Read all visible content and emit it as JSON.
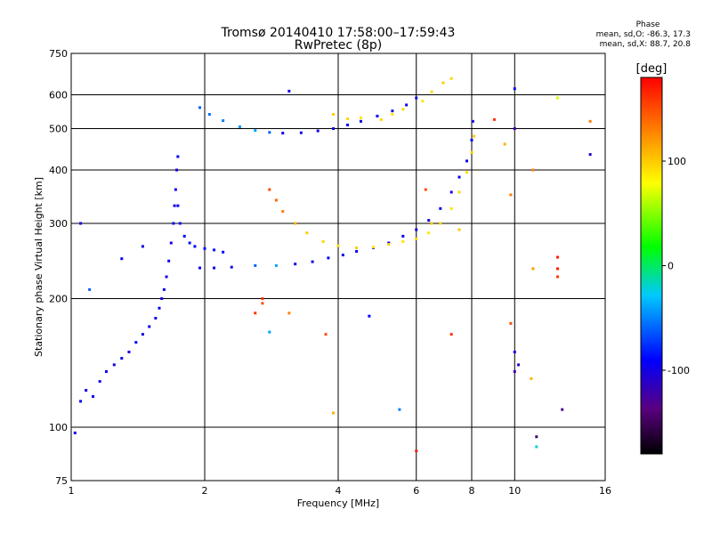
{
  "header": {
    "title_line1": "Tromsø 20140410 17:58:00–17:59:43",
    "title_line2": "RwPretec (8p)"
  },
  "phase_info": {
    "title": "Phase",
    "line_o": "mean, sd,O: -86.3, 17.3",
    "line_x": "mean, sd,X:  88.7, 20.8"
  },
  "colorbar": {
    "unit_label": "[deg]",
    "ticks": [
      {
        "label": "100",
        "value": 100
      },
      {
        "label": "0",
        "value": 0
      },
      {
        "label": "-100",
        "value": -100
      }
    ],
    "range": [
      -180,
      180
    ],
    "colors": [
      "#000000",
      "#5a0080",
      "#0000ff",
      "#00c8ff",
      "#00ff00",
      "#ffff00",
      "#ff8000",
      "#ff0000"
    ]
  },
  "chart_data": {
    "type": "scatter",
    "xlabel": "Frequency [MHz]",
    "ylabel": "Stationary phase Virtual Height [km]",
    "xscale": "log",
    "yscale": "log",
    "xlim": [
      1,
      16
    ],
    "ylim": [
      75,
      750
    ],
    "x_ticks": [
      {
        "label": "1",
        "value": 1
      },
      {
        "label": "2",
        "value": 2
      },
      {
        "label": "4",
        "value": 4
      },
      {
        "label": "6",
        "value": 6
      },
      {
        "label": "8",
        "value": 8
      },
      {
        "label": "10",
        "value": 10
      },
      {
        "label": "16",
        "value": 16
      }
    ],
    "y_ticks": [
      {
        "label": "75",
        "value": 75
      },
      {
        "label": "100",
        "value": 100
      },
      {
        "label": "200",
        "value": 200
      },
      {
        "label": "300",
        "value": 300
      },
      {
        "label": "400",
        "value": 400
      },
      {
        "label": "500",
        "value": 500
      },
      {
        "label": "600",
        "value": 600
      },
      {
        "label": "750",
        "value": 750
      }
    ],
    "grid": true,
    "series": [
      {
        "points": [
          [
            1.02,
            97,
            -100
          ],
          [
            1.05,
            115,
            -95
          ],
          [
            1.08,
            122,
            -100
          ],
          [
            1.12,
            118,
            -95
          ],
          [
            1.16,
            128,
            -100
          ],
          [
            1.2,
            135,
            -95
          ],
          [
            1.25,
            140,
            -100
          ],
          [
            1.3,
            145,
            -95
          ],
          [
            1.35,
            150,
            -100
          ],
          [
            1.4,
            158,
            -95
          ],
          [
            1.45,
            165,
            -100
          ],
          [
            1.5,
            172,
            -95
          ],
          [
            1.55,
            180,
            -100
          ],
          [
            1.58,
            190,
            -95
          ],
          [
            1.6,
            200,
            -100
          ],
          [
            1.62,
            210,
            -95
          ],
          [
            1.64,
            225,
            -100
          ],
          [
            1.66,
            245,
            -95
          ],
          [
            1.68,
            270,
            -100
          ],
          [
            1.7,
            300,
            -95
          ],
          [
            1.71,
            330,
            -100
          ],
          [
            1.72,
            360,
            -95
          ],
          [
            1.73,
            400,
            -100
          ],
          [
            1.74,
            430,
            -95
          ]
        ]
      },
      {
        "points": [
          [
            1.74,
            330,
            -90
          ],
          [
            1.76,
            300,
            -85
          ],
          [
            1.8,
            280,
            -88
          ],
          [
            1.85,
            270,
            -85
          ],
          [
            1.9,
            265,
            -90
          ],
          [
            2.0,
            262,
            -88
          ],
          [
            2.1,
            260,
            -85
          ],
          [
            2.2,
            257,
            -90
          ]
        ]
      },
      {
        "points": [
          [
            1.95,
            236,
            -100
          ],
          [
            2.1,
            236,
            -95
          ],
          [
            2.3,
            237,
            -100
          ],
          [
            2.6,
            239,
            -60
          ],
          [
            2.9,
            239,
            -40
          ],
          [
            3.2,
            241,
            -95
          ],
          [
            3.5,
            244,
            -100
          ],
          [
            3.8,
            249,
            -95
          ],
          [
            4.1,
            253,
            -100
          ],
          [
            4.4,
            258,
            -95
          ],
          [
            4.8,
            263,
            -100
          ],
          [
            5.2,
            270,
            -95
          ],
          [
            5.6,
            280,
            -100
          ],
          [
            6.0,
            290,
            -95
          ],
          [
            6.4,
            305,
            -100
          ],
          [
            6.8,
            325,
            -95
          ],
          [
            7.2,
            355,
            -100
          ],
          [
            7.5,
            385,
            -95
          ],
          [
            7.8,
            420,
            -100
          ],
          [
            8.0,
            470,
            -95
          ],
          [
            8.05,
            520,
            -100
          ]
        ]
      },
      {
        "points": [
          [
            1.95,
            560,
            -60
          ],
          [
            2.05,
            540,
            -55
          ],
          [
            2.2,
            522,
            -50
          ],
          [
            2.4,
            505,
            -45
          ],
          [
            2.6,
            495,
            -40
          ],
          [
            2.8,
            490,
            -60
          ],
          [
            3.0,
            488,
            -95
          ],
          [
            3.3,
            489,
            -100
          ],
          [
            3.6,
            494,
            -95
          ],
          [
            3.9,
            500,
            -100
          ],
          [
            4.2,
            510,
            -95
          ],
          [
            4.5,
            520,
            -100
          ],
          [
            4.9,
            535,
            -95
          ],
          [
            5.3,
            550,
            -100
          ],
          [
            5.7,
            568,
            -95
          ],
          [
            6.0,
            590,
            -100
          ]
        ]
      },
      {
        "points": [
          [
            2.8,
            360,
            150
          ],
          [
            2.9,
            340,
            140
          ],
          [
            3.0,
            320,
            130
          ],
          [
            3.2,
            300,
            110
          ],
          [
            3.4,
            285,
            100
          ],
          [
            3.7,
            272,
            95
          ],
          [
            4.0,
            266,
            90
          ],
          [
            4.4,
            263,
            100
          ],
          [
            4.8,
            264,
            90
          ],
          [
            5.2,
            268,
            95
          ],
          [
            5.6,
            272,
            90
          ],
          [
            6.0,
            276,
            95
          ],
          [
            6.4,
            285,
            90
          ],
          [
            6.8,
            300,
            95
          ],
          [
            7.2,
            325,
            90
          ],
          [
            7.5,
            355,
            95
          ],
          [
            7.8,
            395,
            90
          ],
          [
            8.0,
            440,
            95
          ],
          [
            8.1,
            480,
            100
          ]
        ]
      },
      {
        "points": [
          [
            5.0,
            525,
            95
          ],
          [
            5.3,
            540,
            90
          ],
          [
            5.6,
            555,
            95
          ],
          [
            6.2,
            580,
            90
          ],
          [
            6.5,
            610,
            95
          ],
          [
            6.9,
            640,
            100
          ],
          [
            7.2,
            655,
            95
          ],
          [
            3.9,
            540,
            100
          ],
          [
            4.2,
            527,
            95
          ],
          [
            4.5,
            530,
            90
          ]
        ]
      },
      {
        "points": [
          [
            1.05,
            300,
            -100
          ],
          [
            1.3,
            248,
            -95
          ],
          [
            1.45,
            265,
            -100
          ],
          [
            1.1,
            210,
            -60
          ],
          [
            3.1,
            612,
            -100
          ],
          [
            3.1,
            185,
            130
          ],
          [
            2.7,
            195,
            150
          ],
          [
            2.7,
            200,
            160
          ],
          [
            2.6,
            185,
            160
          ],
          [
            2.8,
            167,
            -40
          ],
          [
            3.75,
            165,
            150
          ],
          [
            3.9,
            108,
            110
          ],
          [
            4.7,
            182,
            -90
          ],
          [
            5.5,
            110,
            -50
          ],
          [
            6.0,
            88,
            170
          ],
          [
            6.3,
            360,
            150
          ],
          [
            6.5,
            300,
            100
          ],
          [
            7.2,
            165,
            160
          ],
          [
            7.5,
            290,
            100
          ],
          [
            9.0,
            525,
            160
          ],
          [
            9.5,
            460,
            110
          ],
          [
            9.8,
            350,
            130
          ],
          [
            10.0,
            620,
            -95
          ],
          [
            10.0,
            500,
            -120
          ],
          [
            10.0,
            150,
            -100
          ],
          [
            9.8,
            175,
            150
          ],
          [
            10.2,
            140,
            -110
          ],
          [
            10.0,
            135,
            -120
          ],
          [
            11.0,
            400,
            130
          ],
          [
            11.0,
            235,
            120
          ],
          [
            12.5,
            250,
            170
          ],
          [
            12.5,
            235,
            170
          ],
          [
            12.5,
            225,
            160
          ],
          [
            12.8,
            110,
            -130
          ],
          [
            11.2,
            95,
            -150
          ],
          [
            11.2,
            90,
            -20
          ],
          [
            14.8,
            520,
            130
          ],
          [
            14.8,
            435,
            -110
          ],
          [
            12.5,
            590,
            70
          ],
          [
            10.9,
            130,
            110
          ]
        ]
      }
    ]
  }
}
